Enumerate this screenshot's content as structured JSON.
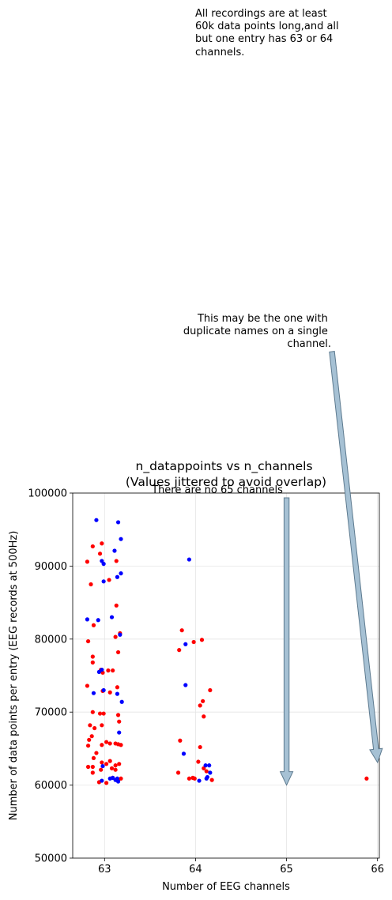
{
  "chart_data": {
    "type": "scatter",
    "title_lines": [
      "n_datappoints vs n_channels",
      "(Values jittered to avoid overlap)"
    ],
    "xlabel": "Number of EEG channels",
    "ylabel": "Number of data points per entry (EEG records at 500Hz)",
    "xlim": [
      62.65,
      66.02
    ],
    "ylim": [
      50000,
      100000
    ],
    "x_ticks": [
      63,
      64,
      65,
      66
    ],
    "y_ticks": [
      50000,
      60000,
      70000,
      80000,
      90000,
      100000
    ],
    "x_tick_labels": [
      "63",
      "64",
      "65",
      "66"
    ],
    "y_tick_labels": [
      "50000",
      "60000",
      "70000",
      "80000",
      "90000",
      "100000"
    ],
    "grid": true,
    "colors": {
      "red": "#ff0000",
      "blue": "#0000ff",
      "arrow_fill": "#a6c1d4",
      "arrow_edge": "#5d7a8f",
      "grid": "#e5e5e5"
    },
    "series": [
      {
        "color": "red",
        "points": [
          [
            62.81,
            90600
          ],
          [
            62.85,
            87500
          ],
          [
            62.87,
            92700
          ],
          [
            62.97,
            93100
          ],
          [
            62.95,
            91700
          ],
          [
            63.05,
            88100
          ],
          [
            63.13,
            90700
          ],
          [
            62.82,
            79700
          ],
          [
            62.88,
            81900
          ],
          [
            62.87,
            77600
          ],
          [
            62.87,
            76800
          ],
          [
            62.96,
            75800
          ],
          [
            62.98,
            75400
          ],
          [
            63.04,
            75700
          ],
          [
            63.09,
            75700
          ],
          [
            63.15,
            78200
          ],
          [
            63.12,
            80300
          ],
          [
            63.17,
            80800
          ],
          [
            63.13,
            84600
          ],
          [
            62.81,
            73600
          ],
          [
            62.98,
            72900
          ],
          [
            63.06,
            72700
          ],
          [
            63.14,
            73400
          ],
          [
            63.15,
            69600
          ],
          [
            63.16,
            68700
          ],
          [
            62.87,
            70000
          ],
          [
            62.95,
            69800
          ],
          [
            62.99,
            69800
          ],
          [
            62.84,
            68200
          ],
          [
            62.89,
            67800
          ],
          [
            62.97,
            68200
          ],
          [
            62.83,
            66200
          ],
          [
            62.86,
            66700
          ],
          [
            62.82,
            65400
          ],
          [
            62.97,
            65500
          ],
          [
            63.02,
            65900
          ],
          [
            63.06,
            65700
          ],
          [
            63.12,
            65700
          ],
          [
            63.15,
            65600
          ],
          [
            63.18,
            65500
          ],
          [
            62.91,
            64400
          ],
          [
            62.88,
            63700
          ],
          [
            62.97,
            63100
          ],
          [
            63.02,
            62900
          ],
          [
            63.06,
            63300
          ],
          [
            63.12,
            62700
          ],
          [
            63.16,
            62900
          ],
          [
            62.82,
            62500
          ],
          [
            62.87,
            62500
          ],
          [
            62.96,
            62100
          ],
          [
            63.08,
            62300
          ],
          [
            63.12,
            62100
          ],
          [
            62.87,
            61700
          ],
          [
            62.94,
            60400
          ],
          [
            63.02,
            60300
          ],
          [
            63.09,
            61000
          ],
          [
            63.18,
            60900
          ],
          [
            63.15,
            60700
          ],
          [
            63.85,
            81200
          ],
          [
            63.82,
            78500
          ],
          [
            63.98,
            79600
          ],
          [
            64.07,
            79900
          ],
          [
            64.16,
            73000
          ],
          [
            64.08,
            71500
          ],
          [
            64.05,
            70900
          ],
          [
            64.09,
            69400
          ],
          [
            63.83,
            66100
          ],
          [
            64.05,
            65200
          ],
          [
            64.03,
            63200
          ],
          [
            63.81,
            61700
          ],
          [
            63.93,
            60900
          ],
          [
            63.97,
            61000
          ],
          [
            63.99,
            60900
          ],
          [
            64.09,
            62300
          ],
          [
            64.12,
            61900
          ],
          [
            64.18,
            60700
          ],
          [
            65.88,
            60900
          ]
        ]
      },
      {
        "color": "blue",
        "points": [
          [
            62.91,
            96300
          ],
          [
            63.15,
            96000
          ],
          [
            63.18,
            93700
          ],
          [
            63.11,
            92100
          ],
          [
            62.97,
            90700
          ],
          [
            62.99,
            90300
          ],
          [
            63.18,
            89000
          ],
          [
            63.14,
            88500
          ],
          [
            62.99,
            87900
          ],
          [
            62.81,
            82700
          ],
          [
            62.93,
            82600
          ],
          [
            63.08,
            83000
          ],
          [
            63.17,
            80600
          ],
          [
            62.94,
            75500
          ],
          [
            62.97,
            75800
          ],
          [
            62.88,
            72600
          ],
          [
            62.99,
            73000
          ],
          [
            63.14,
            72500
          ],
          [
            63.19,
            71400
          ],
          [
            63.16,
            67200
          ],
          [
            62.98,
            62600
          ],
          [
            62.97,
            60600
          ],
          [
            63.06,
            60900
          ],
          [
            63.09,
            61000
          ],
          [
            63.14,
            60900
          ],
          [
            63.15,
            60500
          ],
          [
            63.12,
            60700
          ],
          [
            63.93,
            90900
          ],
          [
            63.89,
            79300
          ],
          [
            63.89,
            73700
          ],
          [
            63.87,
            64300
          ],
          [
            64.11,
            62700
          ],
          [
            64.15,
            62700
          ],
          [
            64.13,
            61100
          ],
          [
            64.16,
            61700
          ],
          [
            64.04,
            60600
          ],
          [
            64.12,
            60900
          ]
        ]
      }
    ],
    "annotations": [
      {
        "id": "note-length",
        "lines": [
          "All recordings are at least",
          "60k data points long,and all",
          "but one entry has 63 or 64",
          "channels."
        ]
      },
      {
        "id": "note-duplicate",
        "lines": [
          "This may be the one with",
          "duplicate names on a single",
          "channel."
        ]
      },
      {
        "id": "note-65",
        "lines": [
          "There are no 65 channels"
        ]
      }
    ]
  }
}
